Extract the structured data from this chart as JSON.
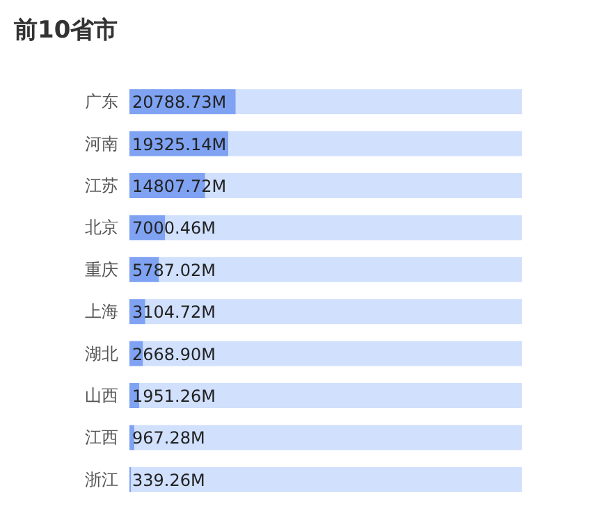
{
  "chart_data": {
    "type": "bar",
    "orientation": "horizontal",
    "stacked": true,
    "title": "前10省市",
    "categories": [
      "广东",
      "河南",
      "江苏",
      "北京",
      "重庆",
      "上海",
      "湖北",
      "山西",
      "江西",
      "浙江"
    ],
    "series": [
      {
        "color": "#7fa3f2",
        "values": [
          20788.73,
          19325.14,
          14807.72,
          7000.46,
          5787.02,
          3104.72,
          2668.9,
          1951.26,
          967.28,
          339.26
        ],
        "value_labels": [
          "20788.73M",
          "19325.14M",
          "14807.72M",
          "7000.46M",
          "5787.02M",
          "3104.72M",
          "2668.90M",
          "1951.26M",
          "967.28M",
          "339.26M"
        ]
      },
      {
        "color": "#d0e0fd",
        "values": [
          55951.27,
          57414.86,
          61932.28,
          69739.54,
          70952.98,
          73635.28,
          74071.1,
          74788.74,
          75772.72,
          76400.74
        ]
      }
    ],
    "xlim": [
      0,
      76740
    ],
    "tick_labels": "y"
  }
}
